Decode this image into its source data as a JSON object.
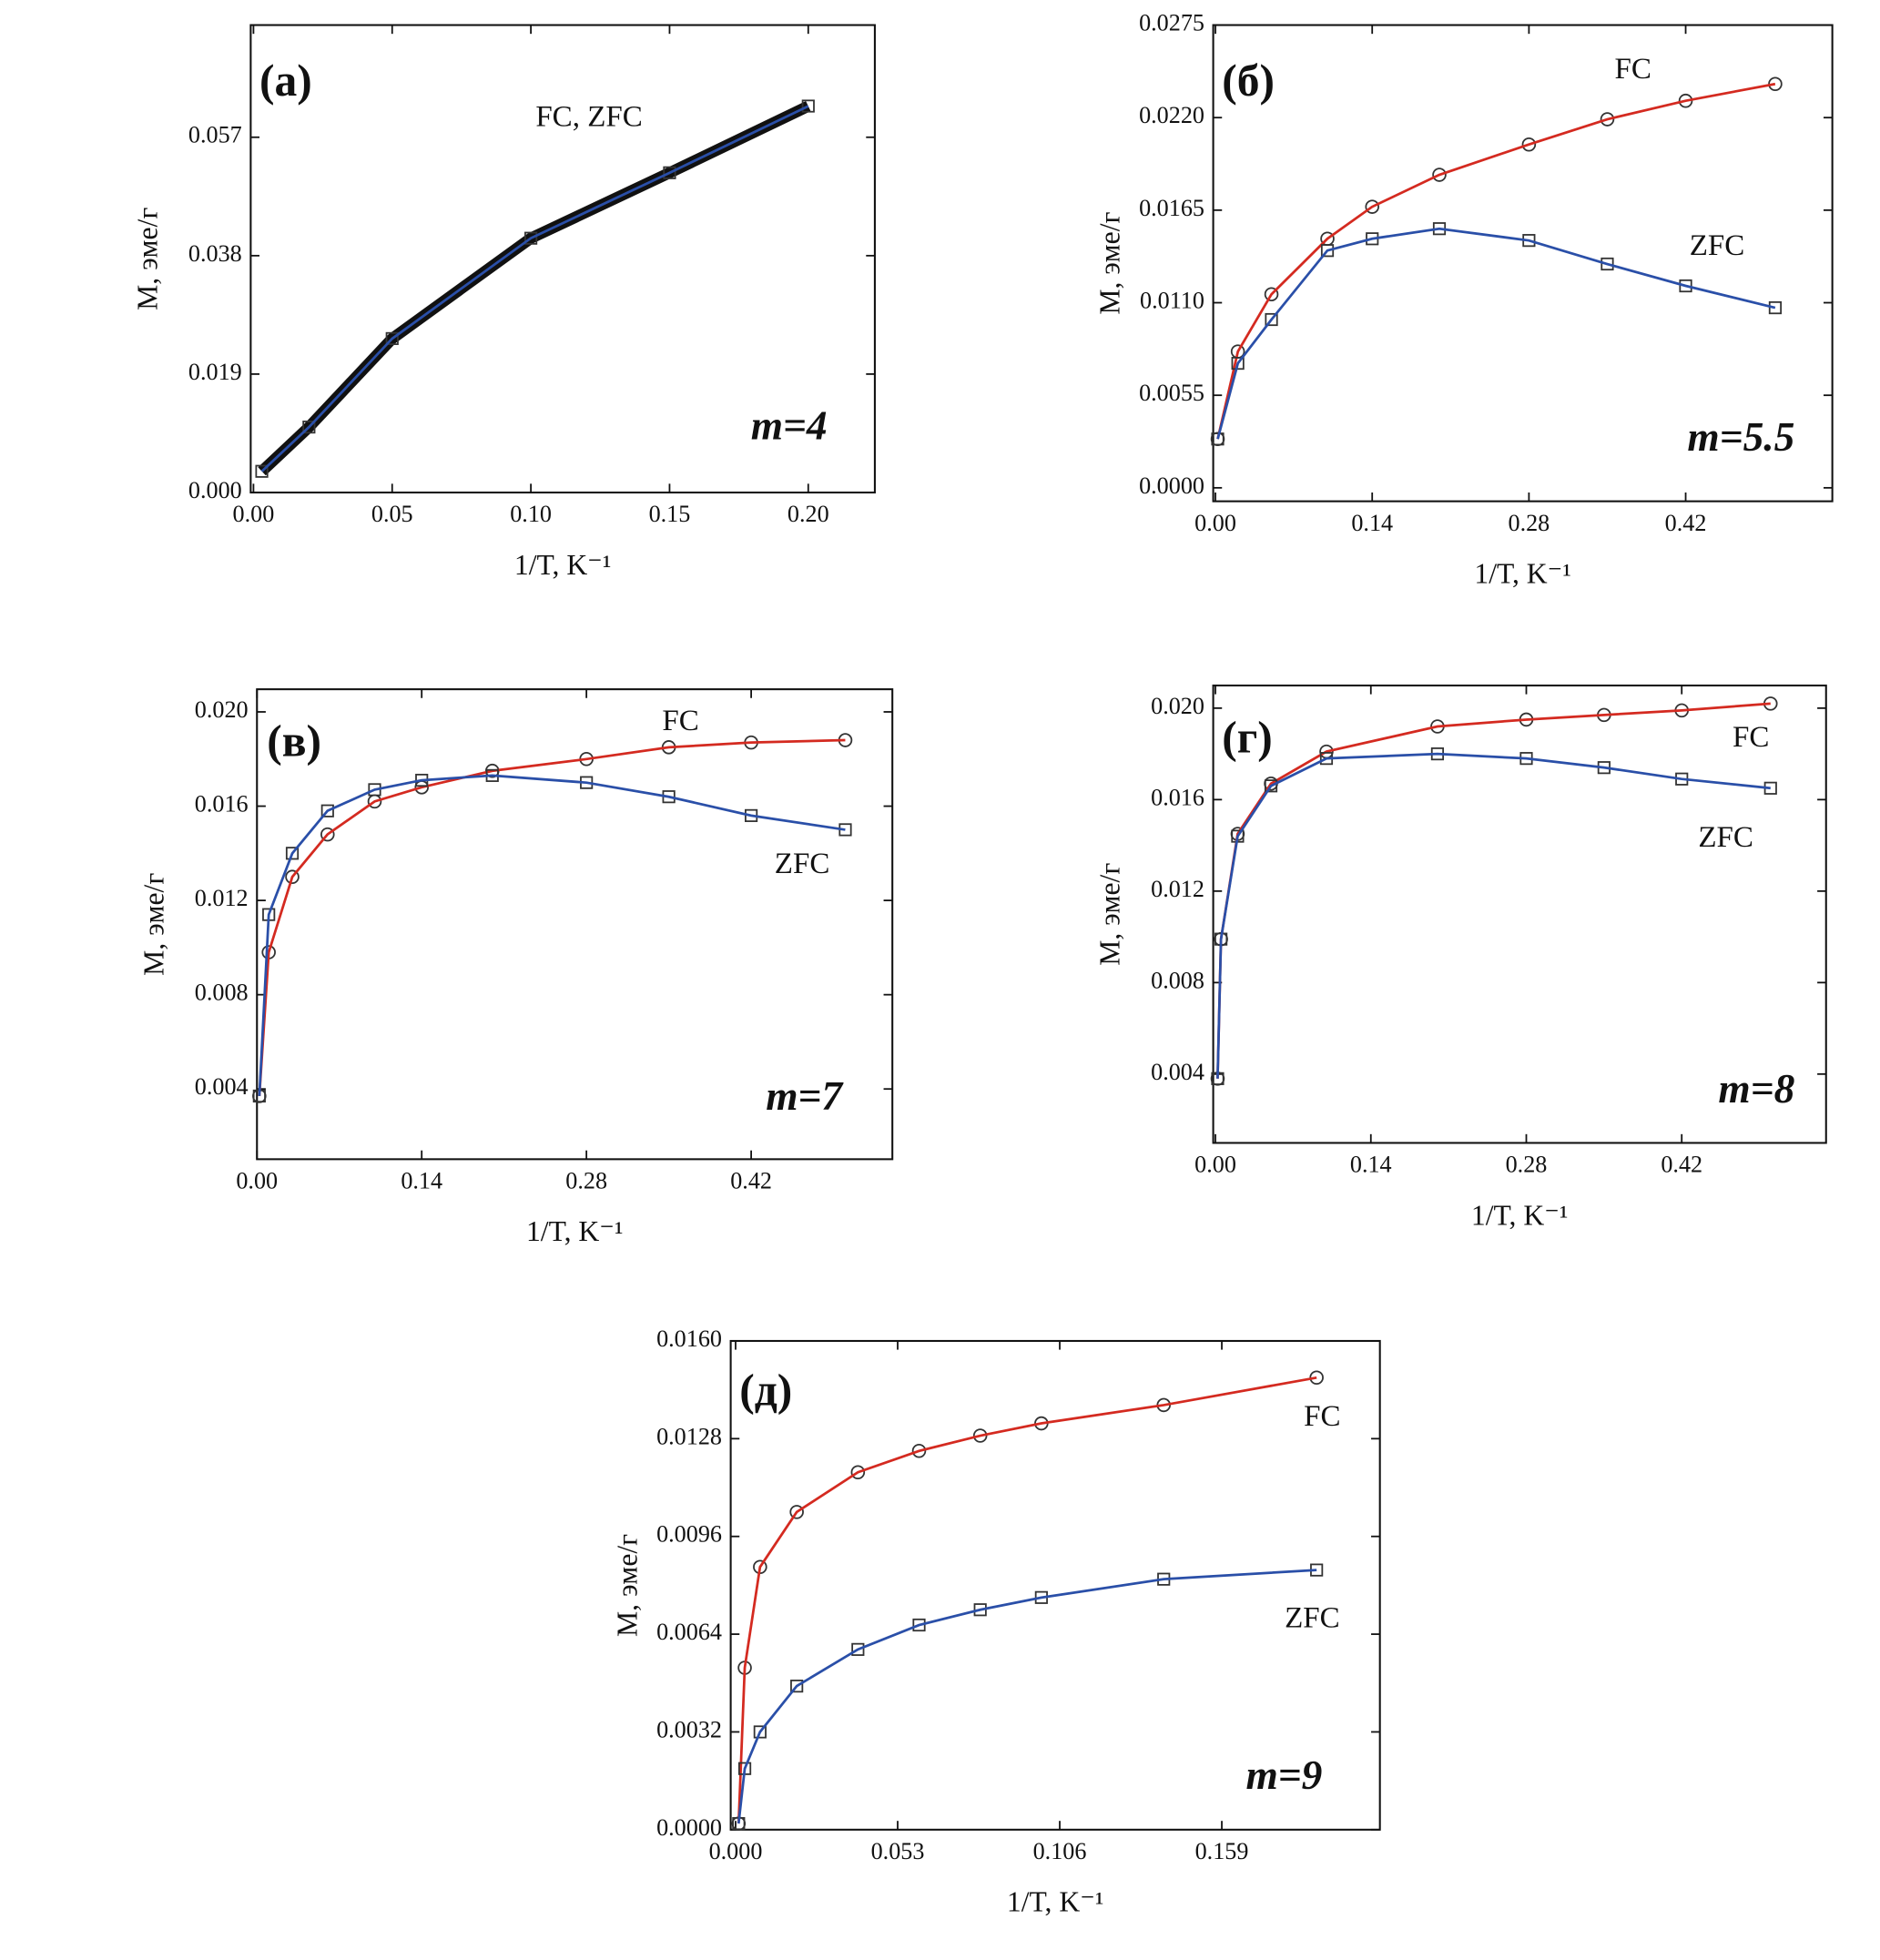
{
  "chart_data": [
    {
      "type": "line",
      "panel_label": "(а)",
      "annotation": "m=4",
      "y_label": "M, эме/г",
      "x_label": "1/T, K⁻¹",
      "x": [
        0.003,
        0.02,
        0.05,
        0.1,
        0.15,
        0.2
      ],
      "series": [
        {
          "name": "FC, ZFC",
          "color": "#2a4fa8",
          "marker": "square",
          "values": [
            0.0034,
            0.0105,
            0.0247,
            0.0408,
            0.0513,
            0.062
          ]
        }
      ],
      "xlim": [
        -0.001,
        0.224
      ],
      "ylim": [
        0,
        0.075
      ],
      "xticks": [
        {
          "value": 0,
          "label": "0.00"
        },
        {
          "value": 0.05,
          "label": "0.05"
        },
        {
          "value": 0.1,
          "label": "0.10"
        },
        {
          "value": 0.15,
          "label": "0.15"
        },
        {
          "value": 0.2,
          "label": "0.20"
        }
      ],
      "yticks": [
        {
          "value": 0,
          "label": "0.000"
        },
        0.019,
        0.038,
        0.057
      ]
    },
    {
      "type": "line",
      "panel_label": "(б)",
      "annotation": "m=5.5",
      "y_label": "M, эме/г",
      "x_label": "1/T, K⁻¹",
      "x": [
        0.002,
        0.02,
        0.05,
        0.1,
        0.14,
        0.2,
        0.28,
        0.35,
        0.42,
        0.5
      ],
      "series": [
        {
          "name": "FC",
          "color": "#d42a20",
          "marker": "circle",
          "values": [
            0.0029,
            0.0081,
            0.0115,
            0.0148,
            0.0167,
            0.0186,
            0.0204,
            0.0219,
            0.023,
            0.024
          ]
        },
        {
          "name": "ZFC",
          "color": "#2a4fa8",
          "marker": "square",
          "values": [
            0.0029,
            0.0074,
            0.01,
            0.0141,
            0.0148,
            0.0154,
            0.0147,
            0.0133,
            0.012,
            0.0107
          ]
        }
      ],
      "xlim": [
        -0.002,
        0.551
      ],
      "ylim": [
        -0.0008,
        0.0275
      ],
      "xticks": [
        {
          "value": 0,
          "label": "0.00"
        },
        0.14,
        0.28,
        0.42
      ],
      "yticks": [
        {
          "value": 0,
          "label": "0.0000"
        },
        0.0055,
        {
          "value": 0.011,
          "label": "0.0110"
        },
        0.0165,
        {
          "value": 0.022,
          "label": "0.0220"
        },
        0.0275
      ]
    },
    {
      "type": "line",
      "panel_label": "(в)",
      "annotation": "m=7",
      "y_label": "M, эме/г",
      "x_label": "1/T, K⁻¹",
      "x": [
        0.002,
        0.01,
        0.03,
        0.06,
        0.1,
        0.14,
        0.2,
        0.28,
        0.35,
        0.42,
        0.5
      ],
      "series": [
        {
          "name": "FC",
          "color": "#d42a20",
          "marker": "circle",
          "values": [
            0.0037,
            0.0098,
            0.013,
            0.0148,
            0.0162,
            0.0168,
            0.0175,
            0.018,
            0.0185,
            0.0187,
            0.0188
          ]
        },
        {
          "name": "ZFC",
          "color": "#2a4fa8",
          "marker": "square",
          "values": [
            0.0037,
            0.0114,
            0.014,
            0.0158,
            0.0167,
            0.0171,
            0.0173,
            0.017,
            0.0164,
            0.0156,
            0.015
          ]
        }
      ],
      "xlim": [
        0,
        0.54
      ],
      "ylim": [
        0.00102,
        0.02096
      ],
      "xticks": [
        {
          "value": 0,
          "label": "0.00"
        },
        0.14,
        0.28,
        0.42
      ],
      "yticks": [
        0.004,
        0.008,
        0.012,
        0.016,
        {
          "value": 0.02,
          "label": "0.020"
        }
      ]
    },
    {
      "type": "line",
      "panel_label": "(г)",
      "annotation": "m=8",
      "y_label": "M, эме/г",
      "x_label": "1/T, K⁻¹",
      "x": [
        0.002,
        0.005,
        0.02,
        0.05,
        0.1,
        0.2,
        0.28,
        0.35,
        0.42,
        0.5
      ],
      "series": [
        {
          "name": "FC",
          "color": "#d42a20",
          "marker": "circle",
          "values": [
            0.0038,
            0.0099,
            0.0145,
            0.0167,
            0.0181,
            0.0192,
            0.0195,
            0.0197,
            0.0199,
            0.0202
          ]
        },
        {
          "name": "ZFC",
          "color": "#2a4fa8",
          "marker": "square",
          "values": [
            0.0038,
            0.0099,
            0.0144,
            0.0166,
            0.0178,
            0.018,
            0.0178,
            0.0174,
            0.0169,
            0.0165
          ]
        }
      ],
      "xlim": [
        -0.002,
        0.55
      ],
      "ylim": [
        0.00099,
        0.02099
      ],
      "xticks": [
        {
          "value": 0,
          "label": "0.00"
        },
        0.14,
        0.28,
        0.42
      ],
      "yticks": [
        0.004,
        0.008,
        0.012,
        0.016,
        {
          "value": 0.02,
          "label": "0.020"
        }
      ]
    },
    {
      "type": "line",
      "panel_label": "(д)",
      "annotation": "m=9",
      "y_label": "M, эме/г",
      "x_label": "1/T, K⁻¹",
      "x": [
        0.001,
        0.003,
        0.008,
        0.02,
        0.04,
        0.06,
        0.08,
        0.1,
        0.14,
        0.19
      ],
      "series": [
        {
          "name": "FC",
          "color": "#d42a20",
          "marker": "circle",
          "values": [
            0.0002,
            0.0053,
            0.0086,
            0.0104,
            0.0117,
            0.0124,
            0.0129,
            0.0133,
            0.0139,
            0.0148
          ]
        },
        {
          "name": "ZFC",
          "color": "#2a4fa8",
          "marker": "square",
          "values": [
            0.0002,
            0.002,
            0.0032,
            0.0047,
            0.0059,
            0.0067,
            0.0072,
            0.0076,
            0.0082,
            0.0085
          ]
        }
      ],
      "xlim": [
        -0.0016,
        0.2107
      ],
      "ylim": [
        0,
        0.016
      ],
      "xticks": [
        {
          "value": 0,
          "label": "0.000"
        },
        0.053,
        0.106,
        0.159
      ],
      "yticks": [
        {
          "value": 0,
          "label": "0.0000"
        },
        {
          "value": 0.0032,
          "label": "0.0032"
        },
        {
          "value": 0.0064,
          "label": "0.0064"
        },
        {
          "value": 0.0096,
          "label": "0.0096"
        },
        {
          "value": 0.0128,
          "label": "0.0128"
        },
        {
          "value": 0.016,
          "label": "0.0160"
        }
      ]
    }
  ]
}
